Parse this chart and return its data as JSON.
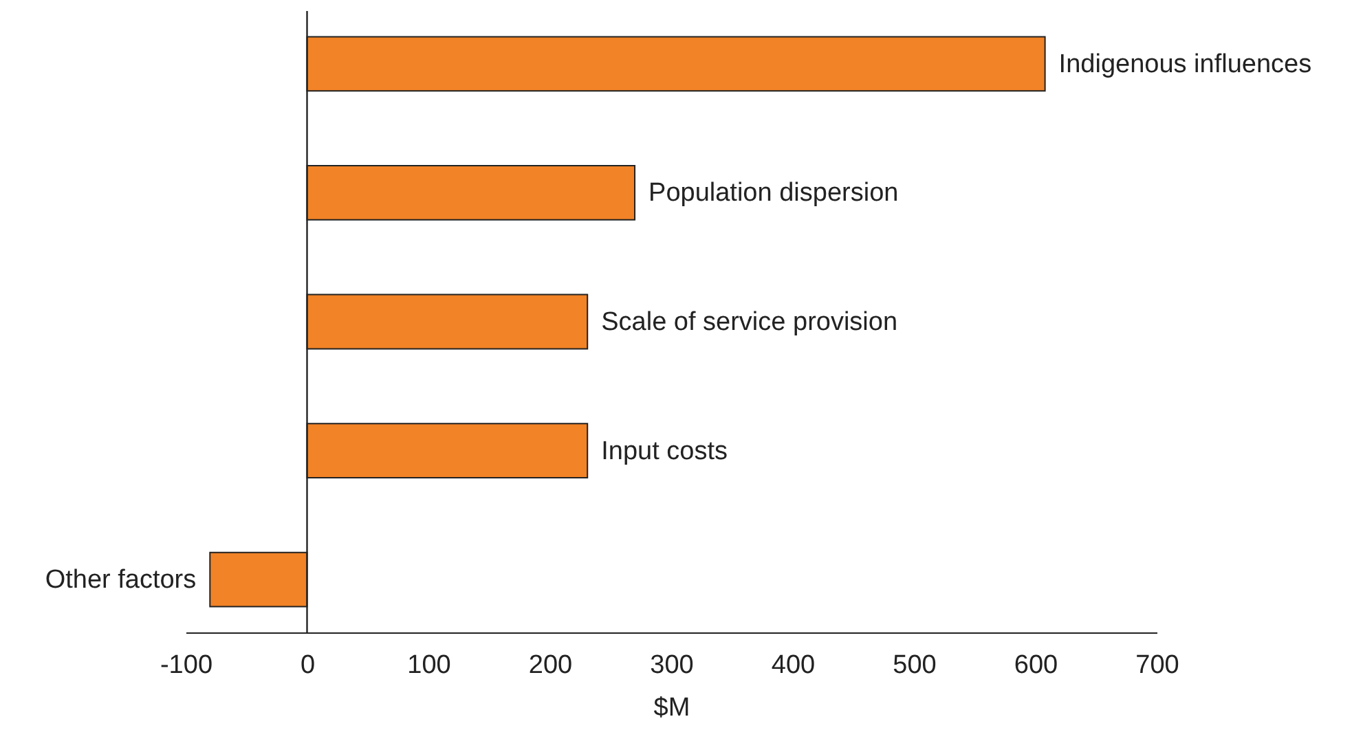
{
  "chart_data": {
    "type": "bar",
    "orientation": "horizontal",
    "xlabel": "$M",
    "categories": [
      "Indigenous influences",
      "Population dispersion",
      "Scale of service provision",
      "Input costs",
      "Other factors"
    ],
    "values": [
      608,
      270,
      231,
      231,
      -80
    ],
    "color": "#f28326",
    "xlim": [
      -100,
      700
    ],
    "xticks": [
      -100,
      0,
      100,
      200,
      300,
      400,
      500,
      600,
      700
    ],
    "grid": false,
    "ref_lines": [
      {
        "axis": "x",
        "value": 0,
        "color": "#222222"
      }
    ]
  }
}
